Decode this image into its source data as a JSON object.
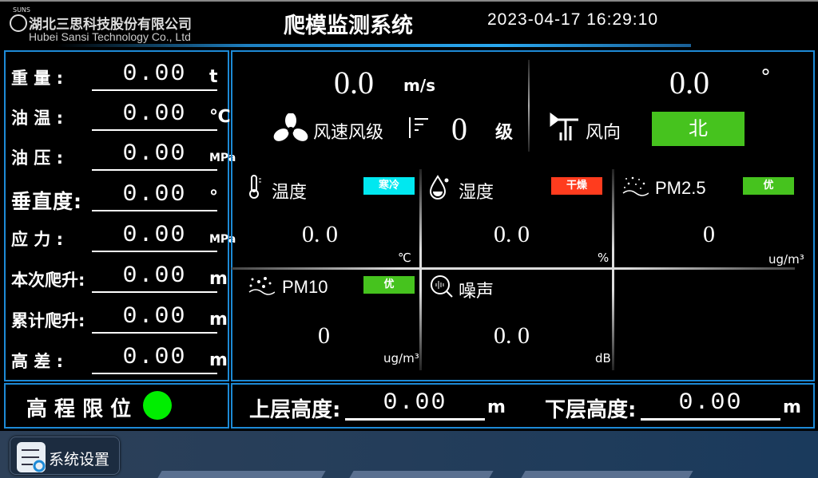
{
  "header": {
    "logo_top": "SUNS",
    "logo_cn": "湖北三思科技股份有限公司",
    "logo_en": "Hubei Sansi Technology Co., Ltd",
    "logo_mark": "三思",
    "title": "爬模监测系统",
    "datetime": "2023-04-17 16:29:10"
  },
  "left_panel": {
    "rows": [
      {
        "label": "重 量 :",
        "value": "0.00",
        "unit": "t"
      },
      {
        "label": "油 温 :",
        "value": "0.00",
        "unit": "℃"
      },
      {
        "label": "油 压 :",
        "value": "0.00",
        "unit": "MPa"
      },
      {
        "label": "垂直度:",
        "value": "0.00",
        "unit": "°"
      },
      {
        "label": "应 力 :",
        "value": "0.00",
        "unit": "MPa"
      },
      {
        "label": "本次爬升:",
        "value": "0.00",
        "unit": "m"
      },
      {
        "label": "累计爬升:",
        "value": "0.00",
        "unit": "m"
      },
      {
        "label": "高 差 :",
        "value": "0.00",
        "unit": "m"
      }
    ]
  },
  "wind": {
    "speed": "0.0",
    "speed_unit": "m/s",
    "speed_label": "风速风级",
    "level": "0",
    "level_unit": "级",
    "direction_value": "0.0",
    "direction_unit": "°",
    "direction_label": "风向",
    "direction": "北",
    "direction_color": "#46c31e"
  },
  "env": {
    "temperature": {
      "label": "温度",
      "badge": "寒冷",
      "badge_color": "#00e8f0",
      "value": "0. 0",
      "unit": "℃"
    },
    "humidity": {
      "label": "湿度",
      "badge": "干燥",
      "badge_color": "#ff3c1e",
      "value": "0. 0",
      "unit": "%"
    },
    "pm25": {
      "label": "PM2.5",
      "badge": "优",
      "badge_color": "#46c31e",
      "value": "0",
      "unit": "ug/m³"
    },
    "pm10": {
      "label": "PM10",
      "badge": "优",
      "badge_color": "#46c31e",
      "value": "0",
      "unit": "ug/m³"
    },
    "noise": {
      "label": "噪声",
      "value": "0. 0",
      "unit": "dB"
    }
  },
  "limit": {
    "label": "高 程 限 位",
    "status_color": "#00ee00"
  },
  "heights": {
    "upper_label": "上层高度:",
    "upper_value": "0.00",
    "upper_unit": "m",
    "lower_label": "下层高度:",
    "lower_value": "0.00",
    "lower_unit": "m"
  },
  "footer": {
    "settings_label": "系统设置"
  }
}
